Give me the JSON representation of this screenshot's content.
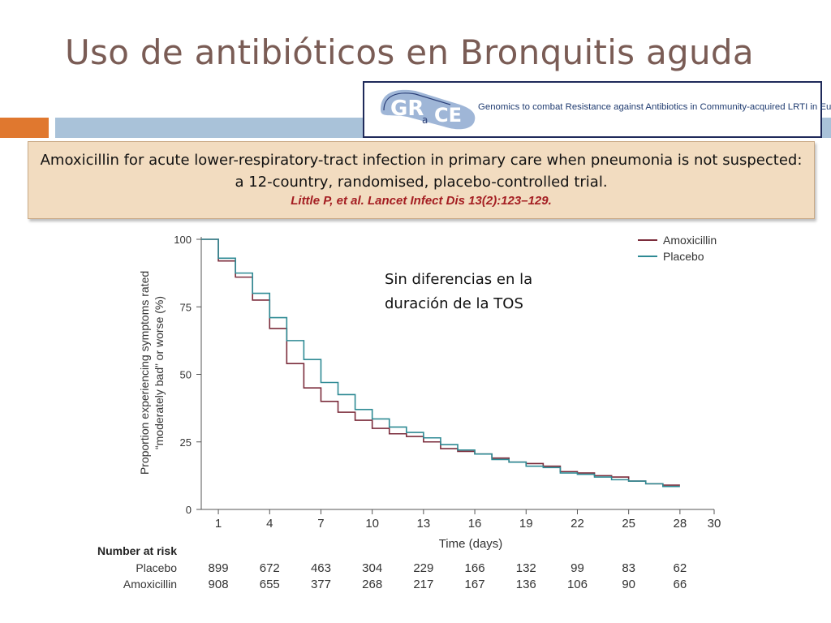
{
  "slide": {
    "title": "Uso de antibióticos en Bronquitis aguda"
  },
  "grace": {
    "logo_text": "GRACE",
    "caption": "Genomics to combat Resistance against Antibiotics in Community-acquired LRTI in Europe"
  },
  "quote": {
    "text": "Amoxicillin for acute lower-respiratory-tract infection in primary care when pneumonia is not suspected: a 12-country, randomised, placebo-controlled trial.",
    "reference": "Little P, et al. Lancet Infect Dis 13(2):123–129."
  },
  "annotation": {
    "line1": "Sin diferencias en la",
    "line2": "duración de la TOS"
  },
  "colors": {
    "title": "#7a5c55",
    "accent_orange": "#e0782f",
    "accent_blue": "#a9c2d9",
    "amoxicillin": "#7b2c3b",
    "placebo": "#2e8a94",
    "quote_bg": "#f2dcc0",
    "reference": "#a41e22"
  },
  "chart_data": {
    "type": "line",
    "step": true,
    "xlabel": "Time (days)",
    "ylabel": "Proportion experiencing symptoms rated “moderately bad” or worse (%)",
    "ylabel_lines": [
      "Proportion experiencing symptoms rated",
      "“moderately bad” or worse (%)"
    ],
    "xlim": [
      0,
      30
    ],
    "ylim": [
      0,
      100
    ],
    "xticks": [
      1,
      4,
      7,
      10,
      13,
      16,
      19,
      22,
      25,
      28,
      30
    ],
    "yticks": [
      0,
      25,
      50,
      75,
      100
    ],
    "legend_position": "top-right",
    "series": [
      {
        "name": "Amoxicillin",
        "color": "#7b2c3b",
        "x": [
          0,
          1,
          2,
          3,
          4,
          5,
          6,
          7,
          8,
          9,
          10,
          11,
          12,
          13,
          14,
          15,
          16,
          17,
          18,
          19,
          20,
          21,
          22,
          23,
          24,
          25,
          26,
          27,
          28
        ],
        "y": [
          100,
          92,
          86,
          77.5,
          67,
          54,
          45,
          40,
          36,
          33,
          30,
          28,
          27,
          25,
          22.5,
          21.5,
          20.5,
          19,
          17.5,
          17,
          16,
          14,
          13.5,
          12.5,
          12,
          10.5,
          9.5,
          9,
          9
        ]
      },
      {
        "name": "Placebo",
        "color": "#2e8a94",
        "x": [
          0,
          1,
          2,
          3,
          4,
          5,
          6,
          7,
          8,
          9,
          10,
          11,
          12,
          13,
          14,
          15,
          16,
          17,
          18,
          19,
          20,
          21,
          22,
          23,
          24,
          25,
          26,
          27,
          28
        ],
        "y": [
          100,
          93,
          87.5,
          80,
          71,
          62.5,
          55.5,
          47,
          42.5,
          37,
          33.5,
          30.5,
          28.5,
          26.5,
          24,
          22,
          20.5,
          18.5,
          17.5,
          16,
          15.5,
          13.5,
          13,
          12,
          11,
          10.5,
          9.5,
          8.5,
          8.5
        ]
      }
    ],
    "risk_table": {
      "title": "Number at risk",
      "days": [
        1,
        4,
        7,
        10,
        13,
        16,
        19,
        22,
        25,
        28
      ],
      "rows": [
        {
          "label": "Placebo",
          "values": [
            899,
            672,
            463,
            304,
            229,
            166,
            132,
            99,
            83,
            62
          ]
        },
        {
          "label": "Amoxicillin",
          "values": [
            908,
            655,
            377,
            268,
            217,
            167,
            136,
            106,
            90,
            66
          ]
        }
      ]
    }
  }
}
